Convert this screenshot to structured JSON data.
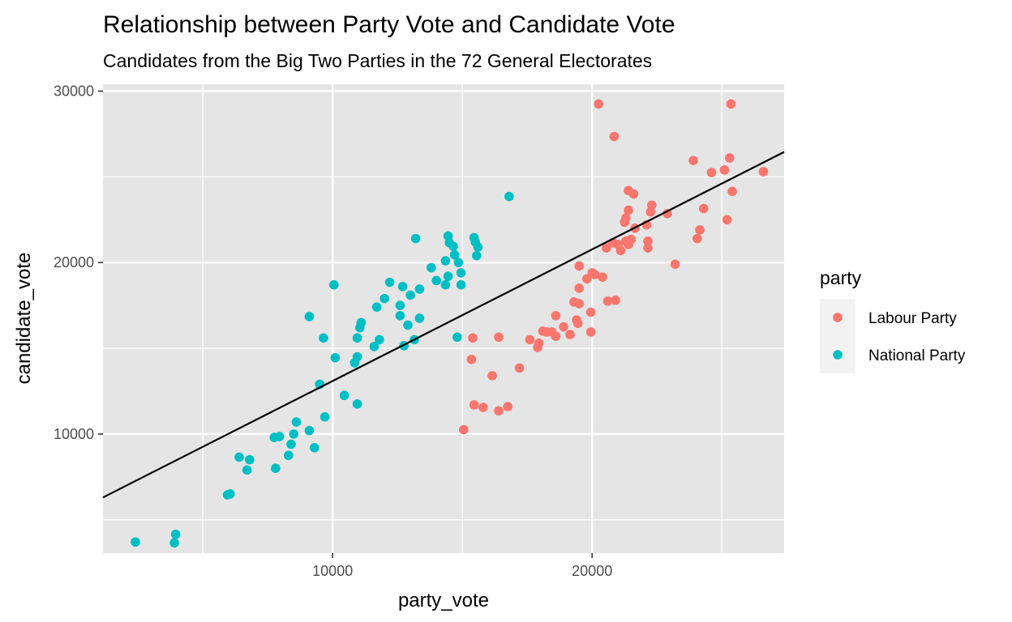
{
  "chart_data": {
    "type": "scatter",
    "title": "Relationship between Party Vote and Candidate Vote",
    "subtitle": "Candidates from the Big Two Parties in the 72 General Electorates",
    "xlabel": "party_vote",
    "ylabel": "candidate_vote",
    "xlim": [
      1150,
      27400
    ],
    "ylim": [
      3050,
      30400
    ],
    "x_ticks": [
      10000,
      20000
    ],
    "x_tick_labels": [
      "10000",
      "20000"
    ],
    "y_ticks": [
      10000,
      20000,
      30000
    ],
    "y_tick_labels": [
      "10000",
      "20000",
      "30000"
    ],
    "grid": true,
    "background": "#e5e5e5",
    "legend": {
      "title": "party",
      "position": "right"
    },
    "trend_line": {
      "x": [
        1150,
        27400
      ],
      "y": [
        6300,
        26450
      ],
      "color": "#000000"
    },
    "series": [
      {
        "name": "Labour Party",
        "color": "#f8766d",
        "points": [
          [
            20250,
            29250
          ],
          [
            25350,
            29250
          ],
          [
            20850,
            27350
          ],
          [
            25300,
            26100
          ],
          [
            23900,
            25950
          ],
          [
            25100,
            25400
          ],
          [
            24600,
            25250
          ],
          [
            26600,
            25300
          ],
          [
            25400,
            24150
          ],
          [
            21400,
            24200
          ],
          [
            21600,
            24000
          ],
          [
            22300,
            23350
          ],
          [
            24300,
            23150
          ],
          [
            21400,
            23050
          ],
          [
            22250,
            22950
          ],
          [
            22900,
            22850
          ],
          [
            21300,
            22600
          ],
          [
            25200,
            22500
          ],
          [
            21250,
            22350
          ],
          [
            22100,
            22200
          ],
          [
            21650,
            22000
          ],
          [
            24150,
            21900
          ],
          [
            24050,
            21400
          ],
          [
            21300,
            21250
          ],
          [
            21500,
            21350
          ],
          [
            21000,
            21050
          ],
          [
            21400,
            21050
          ],
          [
            22150,
            21250
          ],
          [
            22150,
            20850
          ],
          [
            20800,
            21150
          ],
          [
            21100,
            20700
          ],
          [
            20550,
            20850
          ],
          [
            23200,
            19900
          ],
          [
            19500,
            19800
          ],
          [
            20000,
            19400
          ],
          [
            20100,
            19300
          ],
          [
            19800,
            19050
          ],
          [
            20400,
            19150
          ],
          [
            19500,
            18500
          ],
          [
            20900,
            17800
          ],
          [
            20600,
            17750
          ],
          [
            19300,
            17700
          ],
          [
            19500,
            17600
          ],
          [
            19950,
            17100
          ],
          [
            18600,
            16900
          ],
          [
            19400,
            16650
          ],
          [
            19450,
            16450
          ],
          [
            18900,
            16250
          ],
          [
            18100,
            16000
          ],
          [
            18250,
            15950
          ],
          [
            18450,
            15950
          ],
          [
            19150,
            15800
          ],
          [
            18600,
            15700
          ],
          [
            19950,
            15950
          ],
          [
            17600,
            15500
          ],
          [
            17950,
            15300
          ],
          [
            17900,
            15050
          ],
          [
            15400,
            15600
          ],
          [
            16400,
            15650
          ],
          [
            15350,
            14350
          ],
          [
            17200,
            13850
          ],
          [
            16150,
            13400
          ],
          [
            15450,
            11700
          ],
          [
            15800,
            11550
          ],
          [
            16750,
            11600
          ],
          [
            16400,
            11350
          ],
          [
            15050,
            10250
          ]
        ]
      },
      {
        "name": "National Party",
        "color": "#00bfc4",
        "points": [
          [
            16800,
            23850
          ],
          [
            14450,
            21550
          ],
          [
            13200,
            21400
          ],
          [
            15450,
            21450
          ],
          [
            15500,
            21200
          ],
          [
            14500,
            21150
          ],
          [
            14650,
            20950
          ],
          [
            15600,
            20900
          ],
          [
            14700,
            20450
          ],
          [
            15550,
            20400
          ],
          [
            14350,
            20100
          ],
          [
            14850,
            20000
          ],
          [
            13800,
            19700
          ],
          [
            14950,
            19400
          ],
          [
            14450,
            19200
          ],
          [
            14000,
            18950
          ],
          [
            12200,
            18850
          ],
          [
            14350,
            18700
          ],
          [
            14950,
            18700
          ],
          [
            10050,
            18700
          ],
          [
            12700,
            18600
          ],
          [
            13350,
            18450
          ],
          [
            13000,
            18100
          ],
          [
            12000,
            17900
          ],
          [
            12600,
            17500
          ],
          [
            11700,
            17400
          ],
          [
            12600,
            16900
          ],
          [
            13350,
            16750
          ],
          [
            9100,
            16850
          ],
          [
            11100,
            16500
          ],
          [
            11050,
            16200
          ],
          [
            12900,
            16350
          ],
          [
            9650,
            15600
          ],
          [
            10950,
            15600
          ],
          [
            11800,
            15500
          ],
          [
            13150,
            15500
          ],
          [
            11600,
            15100
          ],
          [
            12750,
            15150
          ],
          [
            14800,
            15650
          ],
          [
            10100,
            14450
          ],
          [
            10950,
            14500
          ],
          [
            10850,
            14150
          ],
          [
            9500,
            12900
          ],
          [
            10450,
            12250
          ],
          [
            10950,
            11750
          ],
          [
            9700,
            11000
          ],
          [
            8600,
            10700
          ],
          [
            9100,
            10200
          ],
          [
            8500,
            10000
          ],
          [
            7750,
            9800
          ],
          [
            7950,
            9850
          ],
          [
            8400,
            9400
          ],
          [
            9300,
            9200
          ],
          [
            8300,
            8750
          ],
          [
            6400,
            8650
          ],
          [
            6800,
            8500
          ],
          [
            6700,
            7900
          ],
          [
            7800,
            8000
          ],
          [
            5950,
            6450
          ],
          [
            6050,
            6500
          ],
          [
            3950,
            4150
          ],
          [
            2400,
            3700
          ],
          [
            3900,
            3650
          ]
        ]
      }
    ]
  }
}
